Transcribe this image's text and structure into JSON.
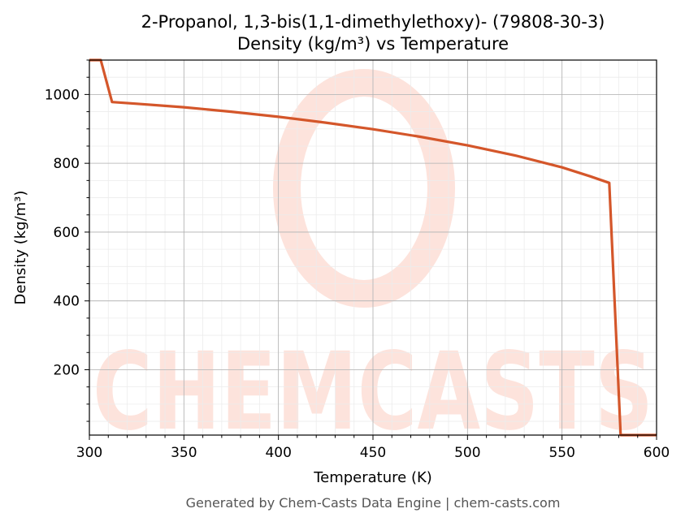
{
  "chart_data": {
    "type": "line",
    "title_line1": "2-Propanol, 1,3-bis(1,1-dimethylethoxy)- (79808-30-3)",
    "title_line2": "Density (kg/m³) vs Temperature",
    "xlabel": "Temperature (K)",
    "ylabel": "Density (kg/m³)",
    "xlim": [
      300,
      600
    ],
    "ylim": [
      10,
      1100
    ],
    "x_ticks": [
      300,
      350,
      400,
      450,
      500,
      550,
      600
    ],
    "y_ticks": [
      200,
      400,
      600,
      800,
      1000
    ],
    "grid": true,
    "line_color": "#d4562a",
    "watermark_color": "#fde3dc",
    "watermark_text": "CHEMCASTS",
    "footer": "Generated by Chem-Casts Data Engine | chem-casts.com",
    "series": [
      {
        "x": [
          300,
          306,
          312,
          325,
          350,
          375,
          400,
          425,
          450,
          475,
          500,
          525,
          550,
          565,
          575,
          581,
          590,
          600
        ],
        "y": [
          1100,
          1100,
          978,
          973,
          963,
          950,
          935,
          918,
          899,
          877,
          852,
          823,
          788,
          762,
          743,
          10,
          10,
          10
        ]
      }
    ]
  }
}
